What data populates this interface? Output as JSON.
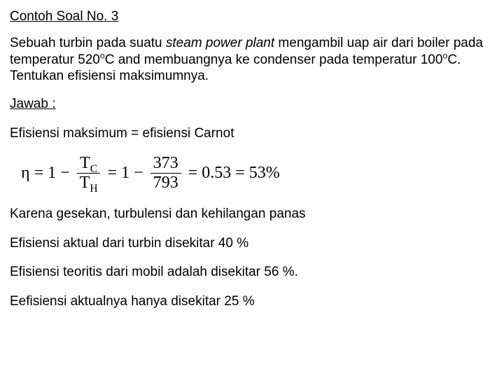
{
  "title": "Contoh Soal No. 3",
  "problem": {
    "p1a": "Sebuah turbin pada suatu ",
    "p1b": "steam power plant",
    "p1c": "  mengambil uap air dari boiler pada temperatur 520",
    "p1d": "C and membuangnya ke condenser pada temperatur 100",
    "p1e": "C. Tentukan efisiensi maksimumnya.",
    "sup": "o"
  },
  "answer_label": "Jawab :",
  "line1": "Efisiensi maksimum = efisiensi Carnot",
  "formula": {
    "eta": "η",
    "eq": "=",
    "one": "1",
    "minus": "−",
    "Tc": "T",
    "c": "C",
    "Th": "T",
    "h": "H",
    "n373": "373",
    "n793": "793",
    "res1": "0.53",
    "res2": "53%"
  },
  "line2": "Karena gesekan, turbulensi dan kehilangan panas",
  "line3": "Efisiensi aktual dari turbin disekitar 40 %",
  "line4": "Efisiensi teoritis dari mobil adalah disekitar 56 %.",
  "line5": "Eefisiensi aktualnya hanya disekitar 25 %"
}
